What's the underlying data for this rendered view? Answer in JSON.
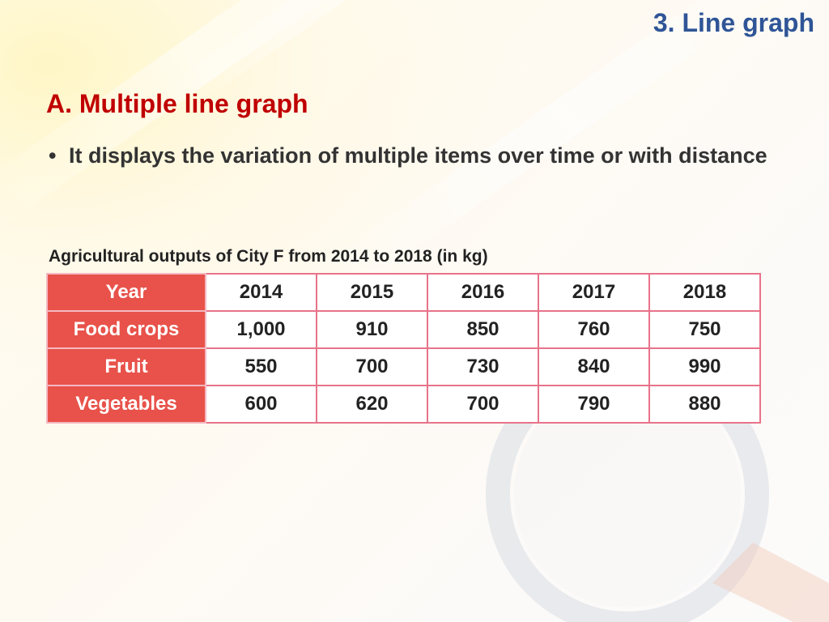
{
  "slide": {
    "top_heading": "3. Line graph",
    "section_title": "A. Multiple line graph",
    "bullet_text": "It displays the variation of multiple items over time or with distance",
    "table_caption": "Agricultural outputs of City F from 2014 to 2018 (in kg)"
  },
  "table": {
    "header_label": "Year",
    "years": [
      "2014",
      "2015",
      "2016",
      "2017",
      "2018"
    ],
    "rows": [
      {
        "label": "Food crops",
        "values": [
          "1,000",
          "910",
          "850",
          "760",
          "750"
        ]
      },
      {
        "label": "Fruit",
        "values": [
          "550",
          "700",
          "730",
          "840",
          "990"
        ]
      },
      {
        "label": "Vegetables",
        "values": [
          "600",
          "620",
          "700",
          "790",
          "880"
        ]
      }
    ]
  },
  "colors": {
    "heading_blue": "#2f5597",
    "title_red": "#c00000",
    "header_cell_red": "#e8524a",
    "table_border_pink": "#e8738a"
  },
  "icons": {
    "background_decoration": "magnifying-glass-icon"
  }
}
